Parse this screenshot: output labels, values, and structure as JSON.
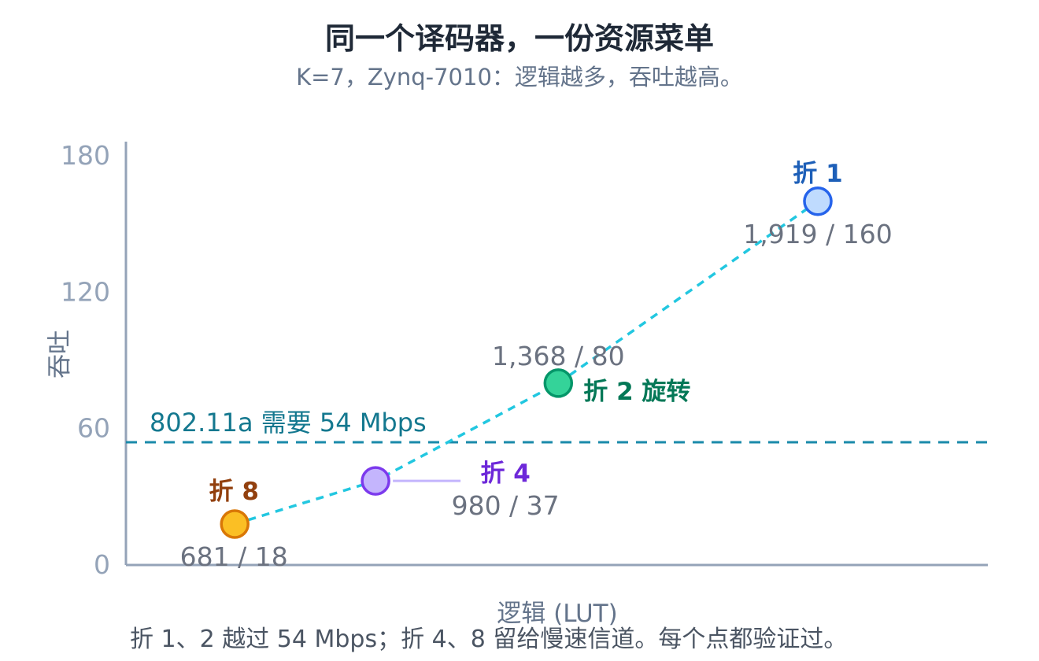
{
  "chart_data": {
    "type": "scatter",
    "title": "同一个译码器，一份资源菜单",
    "subtitle": "K=7，Zynq-7010：逻辑越多，吞吐越高。",
    "xlabel": "逻辑 (LUT)",
    "ylabel": "吞吐",
    "xlim": [
      450,
      2280
    ],
    "ylim": [
      0,
      180
    ],
    "yticks": [
      "0",
      "60",
      "120",
      "180"
    ],
    "grid": false,
    "points": [
      {
        "name": "折 8",
        "x": 681,
        "y": 18,
        "value_label": "681 / 18",
        "color": "#fbbf24",
        "stroke": "#d97706",
        "name_color": "#92400e"
      },
      {
        "name": "折 4",
        "x": 980,
        "y": 37,
        "value_label": "980 / 37",
        "color": "#c4b5fd",
        "stroke": "#7c3aed",
        "name_color": "#6d28d9"
      },
      {
        "name": "折 2 旋转",
        "x": 1368,
        "y": 80,
        "value_label": "1,368 / 80",
        "color": "#34d399",
        "stroke": "#059669",
        "name_color": "#047857"
      },
      {
        "name": "折 1",
        "x": 1919,
        "y": 160,
        "value_label": "1,919 / 160",
        "color": "#bfdbfe",
        "stroke": "#2563eb",
        "name_color": "#1d5fb8"
      }
    ],
    "line_color": "#22c7e0",
    "reference_line": {
      "y": 54,
      "label": "802.11a 需要 54 Mbps",
      "color": "#1a8aaa"
    }
  },
  "footnote": "折 1、2 越过 54 Mbps；折 4、8 留给慢速信道。每个点都验证过。"
}
